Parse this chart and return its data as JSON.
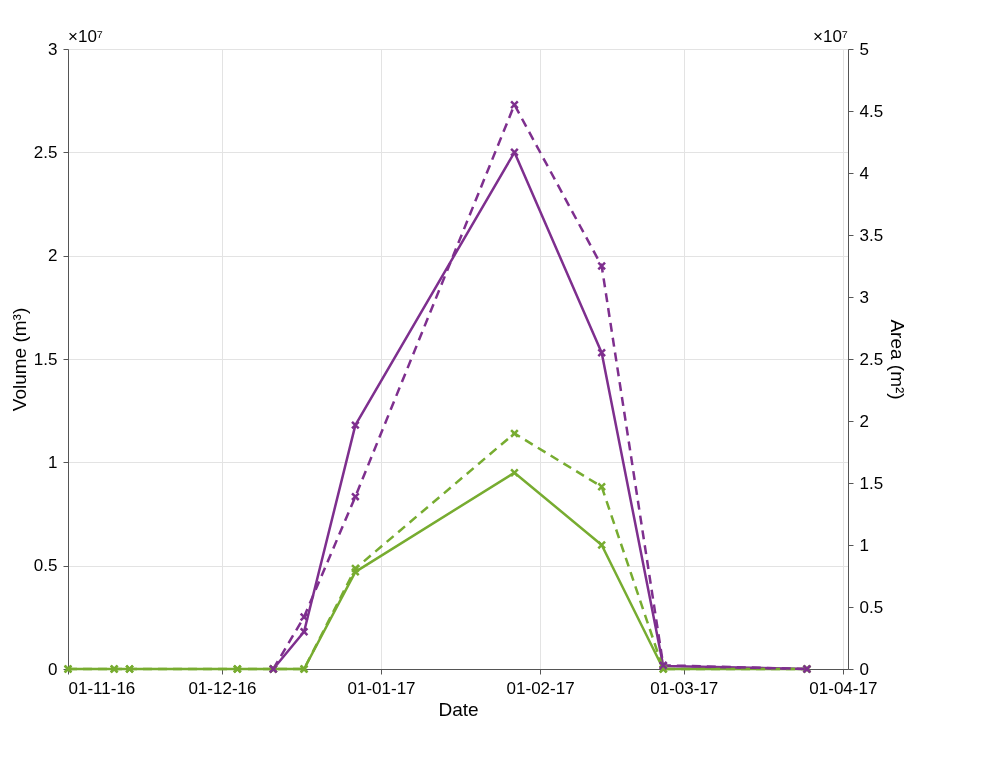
{
  "chart_data": {
    "type": "line",
    "xlabel": "Date",
    "ylabel": "Volume (m³)",
    "y2label": "Area (m²)",
    "annotations": [
      "×10⁷",
      "×10⁷"
    ],
    "xlim": [
      "2016-11-01",
      "2017-04-02"
    ],
    "xticks": [
      {
        "value": "2016-11-01",
        "label": "01-11-16"
      },
      {
        "value": "2016-12-01",
        "label": "01-12-16"
      },
      {
        "value": "2017-01-01",
        "label": "01-01-17"
      },
      {
        "value": "2017-02-01",
        "label": "01-02-17"
      },
      {
        "value": "2017-03-01",
        "label": "01-03-17"
      },
      {
        "value": "2017-04-01",
        "label": "01-04-17"
      }
    ],
    "ylim": [
      0,
      3
    ],
    "yticks": [
      0,
      0.5,
      1,
      1.5,
      2,
      2.5,
      3
    ],
    "y2lim": [
      0,
      5
    ],
    "y2ticks": [
      0,
      0.5,
      1,
      1.5,
      2,
      2.5,
      3,
      3.5,
      4,
      4.5,
      5
    ],
    "grid": true,
    "marker": "cross",
    "legend": false,
    "series": [
      {
        "color": "#77ac30",
        "line_style": "solid",
        "x": [
          "2016-11-01",
          "2016-11-10",
          "2016-11-13",
          "2016-12-04",
          "2016-12-11",
          "2016-12-17",
          "2016-12-27",
          "2017-01-27",
          "2017-02-13",
          "2017-02-25",
          "2017-03-25"
        ],
        "values": [
          0,
          0,
          0,
          0,
          0,
          0,
          0.47,
          0.95,
          0.6,
          0,
          0
        ]
      },
      {
        "color": "#7e2f8e",
        "line_style": "solid",
        "x": [
          "2016-12-11",
          "2016-12-17",
          "2016-12-27",
          "2017-01-27",
          "2017-02-13",
          "2017-02-25",
          "2017-03-25"
        ],
        "values": [
          0,
          0.18,
          1.18,
          2.5,
          1.53,
          0.015,
          0
        ]
      },
      {
        "color": "#77ac30",
        "line_style": "dashed",
        "axis": "y2",
        "x": [
          "2016-11-01",
          "2016-11-10",
          "2016-11-13",
          "2016-12-04",
          "2016-12-11",
          "2016-12-17",
          "2016-12-27",
          "2017-01-27",
          "2017-02-13",
          "2017-02-25",
          "2017-03-25"
        ],
        "values": [
          0,
          0,
          0,
          0,
          0,
          0,
          0.81,
          1.9,
          1.47,
          0,
          0
        ]
      },
      {
        "color": "#7e2f8e",
        "line_style": "dashed",
        "axis": "y2",
        "x": [
          "2016-12-11",
          "2016-12-17",
          "2016-12-27",
          "2017-01-27",
          "2017-02-13",
          "2017-02-25",
          "2017-03-25"
        ],
        "values": [
          0,
          0.42,
          1.39,
          4.55,
          3.25,
          0.03,
          0
        ]
      }
    ]
  }
}
